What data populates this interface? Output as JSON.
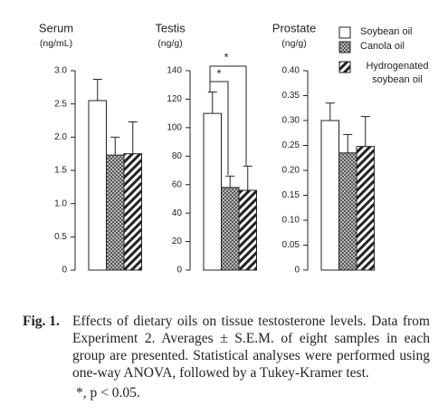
{
  "legend": [
    {
      "name": "Soybean oil",
      "pattern": "plain"
    },
    {
      "name": "Canola oil",
      "pattern": "check"
    },
    {
      "name": "Hydrogenated soybean oil",
      "pattern": "stripe"
    }
  ],
  "chart_data": [
    {
      "type": "bar",
      "title": "Serum",
      "unit": "(ng/mL)",
      "values": [
        2.55,
        1.73,
        1.75
      ],
      "errors": [
        0.32,
        0.27,
        0.48
      ],
      "ylim": [
        0,
        3.0
      ],
      "yticks": [
        0,
        0.5,
        {
          "value": 1,
          "label": "1.0"
        },
        1.5,
        {
          "value": 2,
          "label": "2.0"
        },
        2.5,
        {
          "value": 3,
          "label": "3.0"
        }
      ]
    },
    {
      "type": "bar",
      "title": "Testis",
      "unit": "(ng/g)",
      "values": [
        110,
        58,
        56
      ],
      "errors": [
        15,
        8,
        17
      ],
      "ylim": [
        0,
        140
      ],
      "yticks": [
        0,
        20,
        40,
        60,
        80,
        100,
        120,
        140
      ],
      "annotations": [
        "*",
        "*"
      ]
    },
    {
      "type": "bar",
      "title": "Prostate",
      "unit": "(ng/g)",
      "values": [
        0.3,
        0.235,
        0.248
      ],
      "errors": [
        0.035,
        0.037,
        0.06
      ],
      "ylim": [
        0,
        0.4
      ],
      "yticks": [
        0,
        0.05,
        {
          "value": 0.1,
          "label": "0.10"
        },
        0.15,
        {
          "value": 0.2,
          "label": "0.20"
        },
        0.25,
        {
          "value": 0.3,
          "label": "0.30"
        },
        0.35,
        {
          "value": 0.4,
          "label": "0.40"
        }
      ]
    }
  ],
  "caption": {
    "label": "Fig. 1.",
    "text": "Effects of dietary oils on tissue testosterone levels. Data from Experiment 2. Averages ± S.E.M. of eight samples in each group are presented. Statistical analyses were performed using one-way ANOVA, followed by a Tukey-Kramer test.",
    "note": "*, p < 0.05."
  }
}
